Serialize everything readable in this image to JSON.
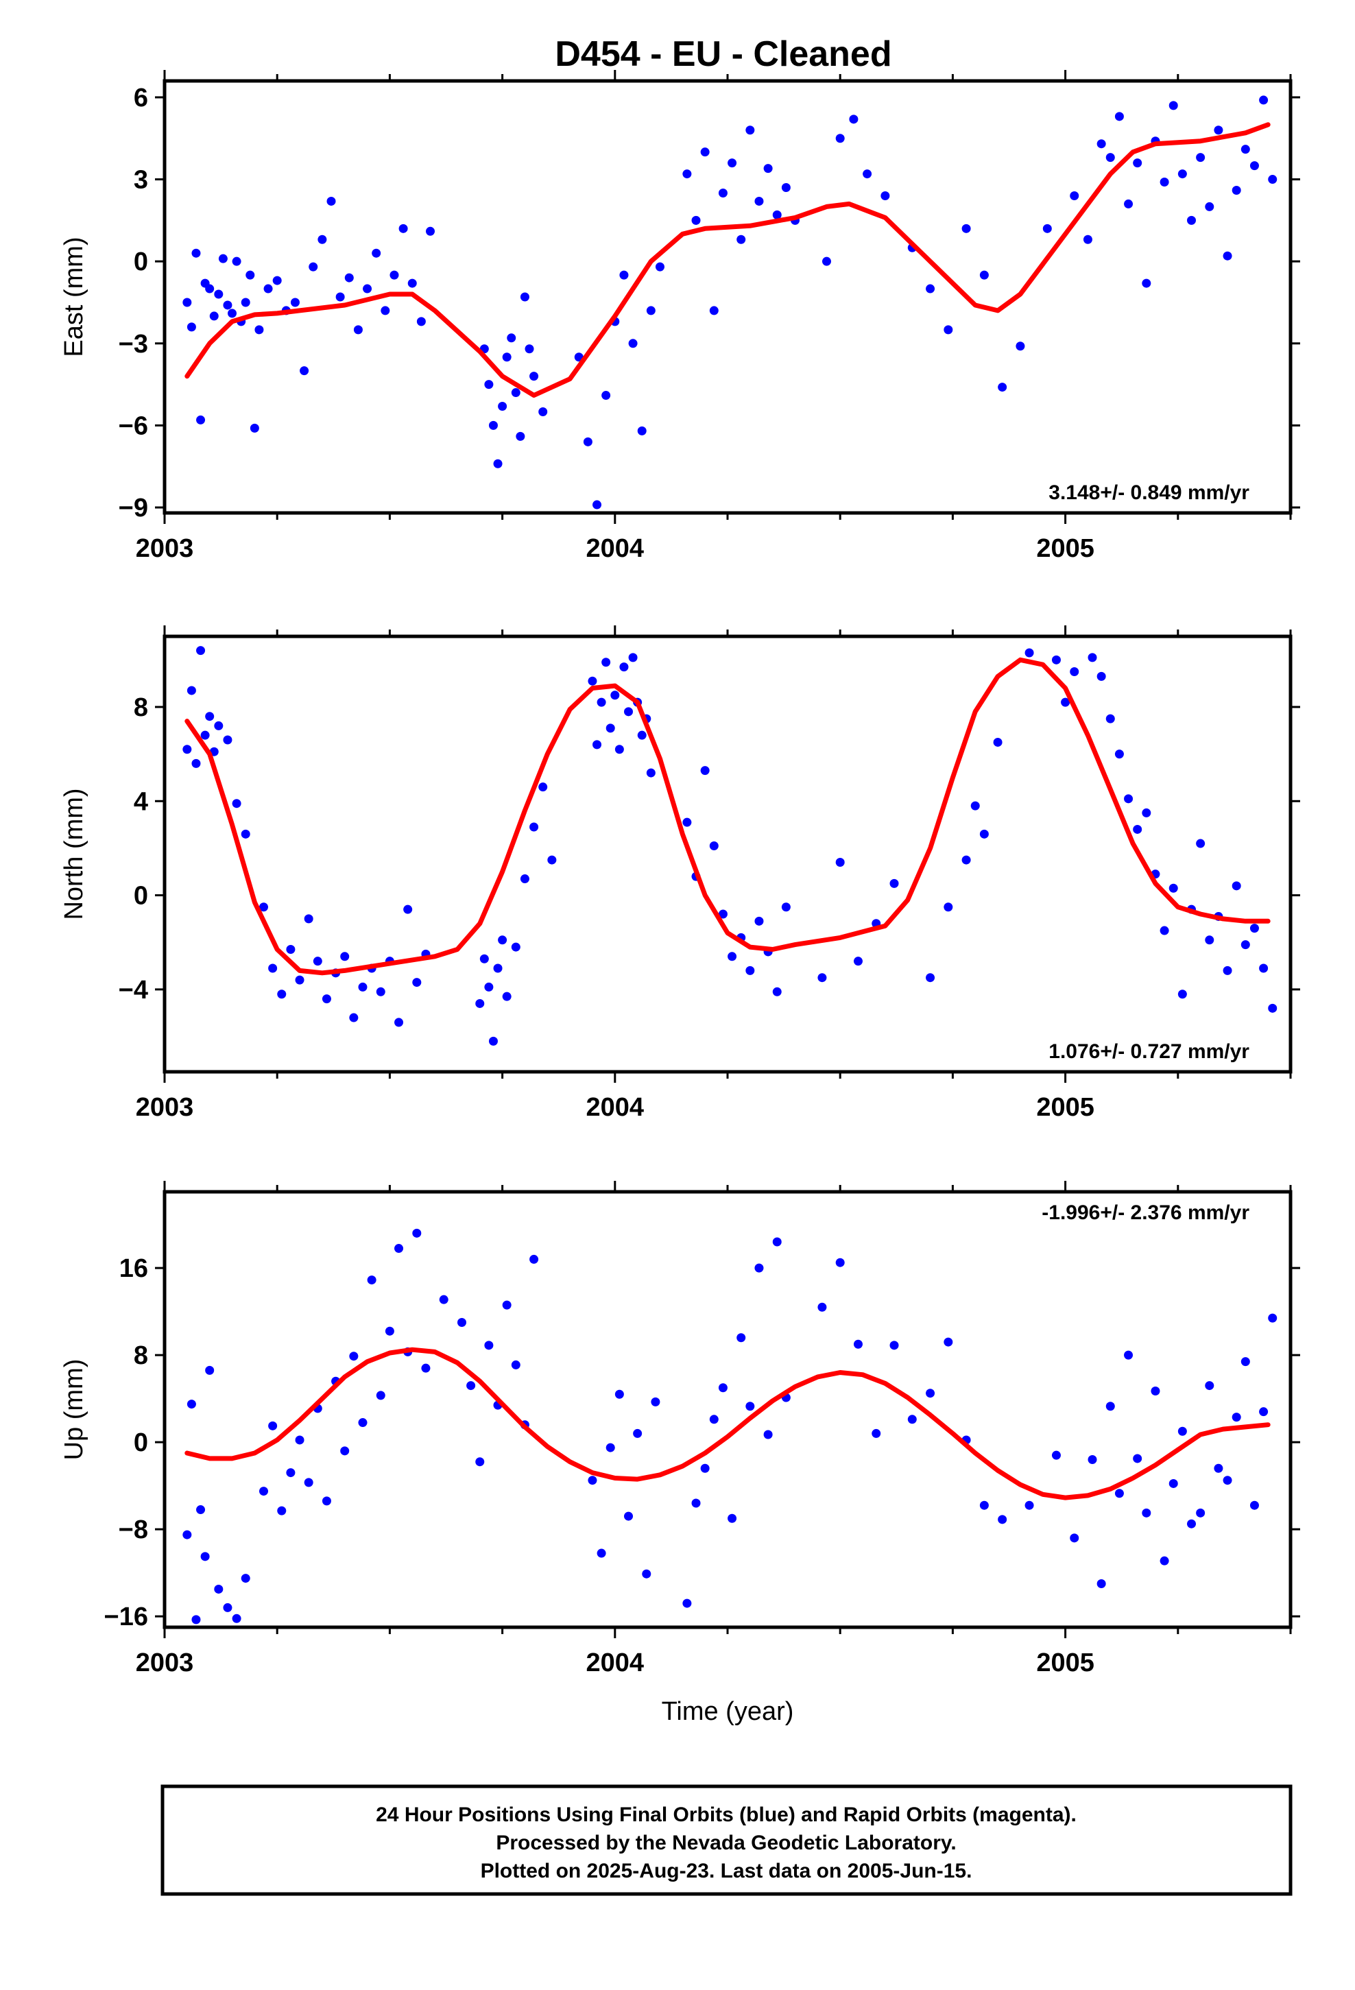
{
  "title": "D454  - EU - Cleaned",
  "footer": {
    "line1": "24 Hour Positions Using Final Orbits (blue) and Rapid Orbits (magenta).",
    "line2": "Processed by the Nevada Geodetic Laboratory.",
    "line3": "Plotted on 2025-Aug-23. Last data on 2005-Jun-15."
  },
  "colors": {
    "points": "#0000ff",
    "fit": "#ff0000",
    "frame": "#000000"
  },
  "chart_data": [
    {
      "type": "scatter",
      "ylabel": "East (mm)",
      "xlabel": "",
      "xlim": [
        2003.0,
        2005.5
      ],
      "ylim": [
        -9.2,
        6.6
      ],
      "xticks": [
        2003,
        2004,
        2005
      ],
      "xtick_labels": [
        "2003",
        "2004",
        "2005"
      ],
      "yticks": [
        6,
        3,
        0,
        -3,
        -6,
        -9
      ],
      "ytick_labels": [
        "6",
        "3",
        "0",
        "−3",
        "−6",
        "−9"
      ],
      "rate_label": "3.148+/- 0.849 mm/yr",
      "rate_position": "bottom-right",
      "fit_curve": {
        "x": [
          2003.05,
          2003.1,
          2003.15,
          2003.2,
          2003.25,
          2003.3,
          2003.4,
          2003.5,
          2003.55,
          2003.6,
          2003.7,
          2003.75,
          2003.82,
          2003.9,
          2004.0,
          2004.08,
          2004.15,
          2004.2,
          2004.3,
          2004.4,
          2004.47,
          2004.52,
          2004.6,
          2004.7,
          2004.8,
          2004.85,
          2004.9,
          2005.0,
          2005.1,
          2005.15,
          2005.2,
          2005.3,
          2005.4,
          2005.45
        ],
        "y": [
          -4.2,
          -3.0,
          -2.2,
          -1.95,
          -1.9,
          -1.8,
          -1.6,
          -1.2,
          -1.2,
          -1.8,
          -3.3,
          -4.2,
          -4.9,
          -4.3,
          -2.0,
          0.0,
          1.0,
          1.2,
          1.3,
          1.6,
          2.0,
          2.1,
          1.6,
          0.0,
          -1.6,
          -1.8,
          -1.2,
          1.0,
          3.2,
          4.0,
          4.3,
          4.4,
          4.7,
          5.0
        ]
      },
      "points": {
        "x": [
          2003.05,
          2003.06,
          2003.07,
          2003.08,
          2003.09,
          2003.1,
          2003.11,
          2003.12,
          2003.13,
          2003.14,
          2003.15,
          2003.16,
          2003.17,
          2003.18,
          2003.19,
          2003.2,
          2003.21,
          2003.23,
          2003.25,
          2003.27,
          2003.29,
          2003.31,
          2003.33,
          2003.35,
          2003.37,
          2003.39,
          2003.41,
          2003.43,
          2003.45,
          2003.47,
          2003.49,
          2003.51,
          2003.53,
          2003.55,
          2003.57,
          2003.59,
          2003.71,
          2003.72,
          2003.73,
          2003.74,
          2003.75,
          2003.76,
          2003.77,
          2003.78,
          2003.79,
          2003.8,
          2003.81,
          2003.82,
          2003.84,
          2003.92,
          2003.94,
          2003.96,
          2003.98,
          2004.0,
          2004.02,
          2004.04,
          2004.06,
          2004.08,
          2004.1,
          2004.16,
          2004.18,
          2004.2,
          2004.22,
          2004.24,
          2004.26,
          2004.28,
          2004.3,
          2004.32,
          2004.34,
          2004.36,
          2004.38,
          2004.4,
          2004.47,
          2004.5,
          2004.53,
          2004.56,
          2004.6,
          2004.66,
          2004.7,
          2004.74,
          2004.78,
          2004.82,
          2004.86,
          2004.9,
          2004.96,
          2005.02,
          2005.05,
          2005.08,
          2005.1,
          2005.12,
          2005.14,
          2005.16,
          2005.18,
          2005.2,
          2005.22,
          2005.24,
          2005.26,
          2005.28,
          2005.3,
          2005.32,
          2005.34,
          2005.36,
          2005.38,
          2005.4,
          2005.42,
          2005.44,
          2005.46
        ],
        "y": [
          -1.5,
          -2.4,
          0.3,
          -5.8,
          -0.8,
          -1.0,
          -2.0,
          -1.2,
          0.1,
          -1.6,
          -1.9,
          0.0,
          -2.2,
          -1.5,
          -0.5,
          -6.1,
          -2.5,
          -1.0,
          -0.7,
          -1.8,
          -1.5,
          -4.0,
          -0.2,
          0.8,
          2.2,
          -1.3,
          -0.6,
          -2.5,
          -1.0,
          0.3,
          -1.8,
          -0.5,
          1.2,
          -0.8,
          -2.2,
          1.1,
          -3.2,
          -4.5,
          -6.0,
          -7.4,
          -5.3,
          -3.5,
          -2.8,
          -4.8,
          -6.4,
          -1.3,
          -3.2,
          -4.2,
          -5.5,
          -3.5,
          -6.6,
          -8.9,
          -4.9,
          -2.2,
          -0.5,
          -3.0,
          -6.2,
          -1.8,
          -0.2,
          3.2,
          1.5,
          4.0,
          -1.8,
          2.5,
          3.6,
          0.8,
          4.8,
          2.2,
          3.4,
          1.7,
          2.7,
          1.5,
          0.0,
          4.5,
          5.2,
          3.2,
          2.4,
          0.5,
          -1.0,
          -2.5,
          1.2,
          -0.5,
          -4.6,
          -3.1,
          1.2,
          2.4,
          0.8,
          4.3,
          3.8,
          5.3,
          2.1,
          3.6,
          -0.8,
          4.4,
          2.9,
          5.7,
          3.2,
          1.5,
          3.8,
          2.0,
          4.8,
          0.2,
          2.6,
          4.1,
          3.5,
          5.9,
          3.0
        ]
      }
    },
    {
      "type": "scatter",
      "ylabel": "North (mm)",
      "xlabel": "",
      "xlim": [
        2003.0,
        2005.5
      ],
      "ylim": [
        -7.5,
        11.0
      ],
      "xticks": [
        2003,
        2004,
        2005
      ],
      "xtick_labels": [
        "2003",
        "2004",
        "2005"
      ],
      "yticks": [
        8,
        4,
        0,
        -4
      ],
      "ytick_labels": [
        "8",
        "4",
        "0",
        "−4"
      ],
      "rate_label": "1.076+/- 0.727 mm/yr",
      "rate_position": "bottom-right",
      "fit_curve": {
        "x": [
          2003.05,
          2003.1,
          2003.15,
          2003.2,
          2003.25,
          2003.3,
          2003.35,
          2003.4,
          2003.5,
          2003.6,
          2003.65,
          2003.7,
          2003.75,
          2003.8,
          2003.85,
          2003.9,
          2003.95,
          2004.0,
          2004.05,
          2004.1,
          2004.15,
          2004.2,
          2004.25,
          2004.3,
          2004.35,
          2004.4,
          2004.5,
          2004.6,
          2004.65,
          2004.7,
          2004.75,
          2004.8,
          2004.85,
          2004.9,
          2004.95,
          2005.0,
          2005.05,
          2005.1,
          2005.15,
          2005.2,
          2005.25,
          2005.3,
          2005.35,
          2005.4,
          2005.45
        ],
        "y": [
          7.4,
          6.0,
          3.0,
          -0.3,
          -2.3,
          -3.2,
          -3.3,
          -3.2,
          -2.9,
          -2.6,
          -2.3,
          -1.2,
          1.0,
          3.6,
          6.0,
          7.9,
          8.8,
          8.9,
          8.2,
          5.8,
          2.6,
          0.0,
          -1.6,
          -2.2,
          -2.3,
          -2.1,
          -1.8,
          -1.3,
          -0.2,
          2.0,
          5.0,
          7.8,
          9.3,
          10.0,
          9.8,
          8.8,
          6.8,
          4.5,
          2.2,
          0.5,
          -0.5,
          -0.8,
          -1.0,
          -1.1,
          -1.1
        ]
      },
      "points": {
        "x": [
          2003.05,
          2003.06,
          2003.07,
          2003.08,
          2003.09,
          2003.1,
          2003.11,
          2003.12,
          2003.14,
          2003.16,
          2003.18,
          2003.22,
          2003.24,
          2003.26,
          2003.28,
          2003.3,
          2003.32,
          2003.34,
          2003.36,
          2003.38,
          2003.4,
          2003.42,
          2003.44,
          2003.46,
          2003.48,
          2003.5,
          2003.52,
          2003.54,
          2003.56,
          2003.58,
          2003.7,
          2003.71,
          2003.72,
          2003.73,
          2003.74,
          2003.75,
          2003.76,
          2003.78,
          2003.8,
          2003.82,
          2003.84,
          2003.86,
          2003.95,
          2003.96,
          2003.97,
          2003.98,
          2003.99,
          2004.0,
          2004.01,
          2004.02,
          2004.03,
          2004.04,
          2004.05,
          2004.06,
          2004.07,
          2004.08,
          2004.16,
          2004.18,
          2004.2,
          2004.22,
          2004.24,
          2004.26,
          2004.28,
          2004.3,
          2004.32,
          2004.34,
          2004.36,
          2004.38,
          2004.46,
          2004.5,
          2004.54,
          2004.58,
          2004.62,
          2004.7,
          2004.74,
          2004.78,
          2004.8,
          2004.82,
          2004.85,
          2004.92,
          2004.98,
          2005.0,
          2005.02,
          2005.06,
          2005.08,
          2005.1,
          2005.12,
          2005.14,
          2005.16,
          2005.18,
          2005.2,
          2005.22,
          2005.24,
          2005.26,
          2005.28,
          2005.3,
          2005.32,
          2005.34,
          2005.36,
          2005.38,
          2005.4,
          2005.42,
          2005.44,
          2005.46
        ],
        "y": [
          6.2,
          8.7,
          5.6,
          10.4,
          6.8,
          7.6,
          6.1,
          7.2,
          6.6,
          3.9,
          2.6,
          -0.5,
          -3.1,
          -4.2,
          -2.3,
          -3.6,
          -1.0,
          -2.8,
          -4.4,
          -3.3,
          -2.6,
          -5.2,
          -3.9,
          -3.1,
          -4.1,
          -2.8,
          -5.4,
          -0.6,
          -3.7,
          -2.5,
          -4.6,
          -2.7,
          -3.9,
          -6.2,
          -3.1,
          -1.9,
          -4.3,
          -2.2,
          0.7,
          2.9,
          4.6,
          1.5,
          9.1,
          6.4,
          8.2,
          9.9,
          7.1,
          8.5,
          6.2,
          9.7,
          7.8,
          10.1,
          8.2,
          6.8,
          7.5,
          5.2,
          3.1,
          0.8,
          5.3,
          2.1,
          -0.8,
          -2.6,
          -1.8,
          -3.2,
          -1.1,
          -2.4,
          -4.1,
          -0.5,
          -3.5,
          1.4,
          -2.8,
          -1.2,
          0.5,
          -3.5,
          -0.5,
          1.5,
          3.8,
          2.6,
          6.5,
          10.3,
          10.0,
          8.2,
          9.5,
          10.1,
          9.3,
          7.5,
          6.0,
          4.1,
          2.8,
          3.5,
          0.9,
          -1.5,
          0.3,
          -4.2,
          -0.6,
          2.2,
          -1.9,
          -0.9,
          -3.2,
          0.4,
          -2.1,
          -1.4,
          -3.1,
          -4.8
        ]
      }
    },
    {
      "type": "scatter",
      "ylabel": "Up (mm)",
      "xlabel": "Time (year)",
      "xlim": [
        2003.0,
        2005.5
      ],
      "ylim": [
        -17.0,
        23.0
      ],
      "xticks": [
        2003,
        2004,
        2005
      ],
      "xtick_labels": [
        "2003",
        "2004",
        "2005"
      ],
      "yticks": [
        16,
        8,
        0,
        -8,
        -16
      ],
      "ytick_labels": [
        "16",
        "8",
        "0",
        "−8",
        "−16"
      ],
      "rate_label": "-1.996+/- 2.376 mm/yr",
      "rate_position": "top-right",
      "fit_curve": {
        "x": [
          2003.05,
          2003.1,
          2003.15,
          2003.2,
          2003.25,
          2003.3,
          2003.35,
          2003.4,
          2003.45,
          2003.5,
          2003.55,
          2003.6,
          2003.65,
          2003.7,
          2003.75,
          2003.8,
          2003.85,
          2003.9,
          2003.95,
          2004.0,
          2004.05,
          2004.1,
          2004.15,
          2004.2,
          2004.25,
          2004.3,
          2004.35,
          2004.4,
          2004.45,
          2004.5,
          2004.55,
          2004.6,
          2004.65,
          2004.7,
          2004.75,
          2004.8,
          2004.85,
          2004.9,
          2004.95,
          2005.0,
          2005.05,
          2005.1,
          2005.15,
          2005.2,
          2005.25,
          2005.3,
          2005.35,
          2005.4,
          2005.45
        ],
        "y": [
          -1.0,
          -1.5,
          -1.5,
          -1.0,
          0.2,
          2.0,
          4.0,
          6.0,
          7.4,
          8.2,
          8.5,
          8.3,
          7.3,
          5.6,
          3.5,
          1.4,
          -0.4,
          -1.8,
          -2.8,
          -3.3,
          -3.4,
          -3.0,
          -2.2,
          -1.0,
          0.5,
          2.2,
          3.8,
          5.1,
          6.0,
          6.4,
          6.2,
          5.4,
          4.1,
          2.5,
          0.8,
          -1.0,
          -2.6,
          -3.9,
          -4.8,
          -5.1,
          -4.9,
          -4.3,
          -3.3,
          -2.1,
          -0.7,
          0.7,
          1.2,
          1.4,
          1.6
        ]
      },
      "points": {
        "x": [
          2003.05,
          2003.06,
          2003.07,
          2003.08,
          2003.09,
          2003.1,
          2003.12,
          2003.14,
          2003.16,
          2003.18,
          2003.22,
          2003.24,
          2003.26,
          2003.28,
          2003.3,
          2003.32,
          2003.34,
          2003.36,
          2003.38,
          2003.4,
          2003.42,
          2003.44,
          2003.46,
          2003.48,
          2003.5,
          2003.52,
          2003.54,
          2003.56,
          2003.58,
          2003.62,
          2003.66,
          2003.68,
          2003.7,
          2003.72,
          2003.74,
          2003.76,
          2003.78,
          2003.8,
          2003.82,
          2003.95,
          2003.97,
          2003.99,
          2004.01,
          2004.03,
          2004.05,
          2004.07,
          2004.09,
          2004.16,
          2004.18,
          2004.2,
          2004.22,
          2004.24,
          2004.26,
          2004.28,
          2004.3,
          2004.32,
          2004.34,
          2004.36,
          2004.38,
          2004.46,
          2004.5,
          2004.54,
          2004.58,
          2004.62,
          2004.66,
          2004.7,
          2004.74,
          2004.78,
          2004.82,
          2004.86,
          2004.92,
          2004.98,
          2005.02,
          2005.06,
          2005.08,
          2005.1,
          2005.12,
          2005.14,
          2005.16,
          2005.18,
          2005.2,
          2005.22,
          2005.24,
          2005.26,
          2005.28,
          2005.3,
          2005.32,
          2005.34,
          2005.36,
          2005.38,
          2005.4,
          2005.42,
          2005.44,
          2005.46
        ],
        "y": [
          -8.5,
          3.5,
          -16.3,
          -6.2,
          -10.5,
          6.6,
          -13.5,
          -15.2,
          -16.2,
          -12.5,
          -4.5,
          1.5,
          -6.3,
          -2.8,
          0.2,
          -3.7,
          3.1,
          -5.4,
          5.6,
          -0.8,
          7.9,
          1.8,
          14.9,
          4.3,
          10.2,
          17.8,
          8.3,
          19.2,
          6.8,
          13.1,
          11.0,
          5.2,
          -1.8,
          8.9,
          3.4,
          12.6,
          7.1,
          1.6,
          16.8,
          -3.5,
          -10.2,
          -0.5,
          4.4,
          -6.8,
          0.8,
          -12.1,
          3.7,
          -14.8,
          -5.6,
          -2.4,
          2.1,
          5.0,
          -7.0,
          9.6,
          3.3,
          16.0,
          0.7,
          18.4,
          4.1,
          12.4,
          16.5,
          9.0,
          0.8,
          8.9,
          2.1,
          4.5,
          9.2,
          0.2,
          -5.8,
          -7.1,
          -5.8,
          -1.2,
          -8.8,
          -1.6,
          -13.0,
          3.3,
          -4.7,
          8.0,
          -1.5,
          -6.5,
          4.7,
          -10.9,
          -3.8,
          1.0,
          -7.5,
          -6.5,
          5.2,
          -2.4,
          -3.5,
          2.3,
          7.4,
          -5.8,
          2.8,
          11.4
        ]
      }
    }
  ]
}
